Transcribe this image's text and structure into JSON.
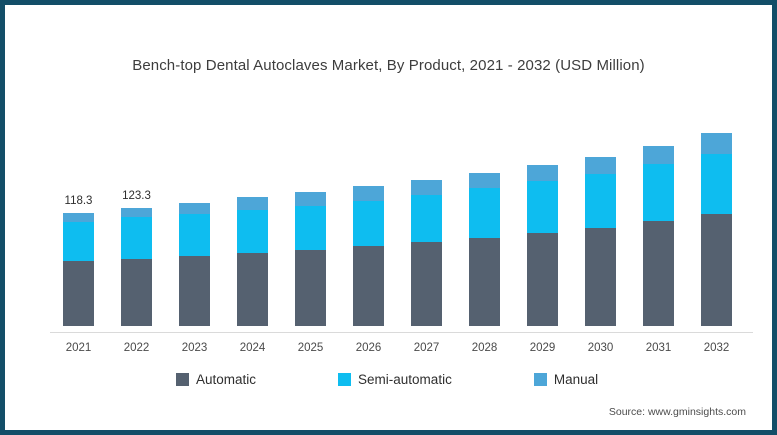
{
  "frame": {
    "border_color": "#134e68",
    "background": "#ffffff"
  },
  "chart_data": {
    "type": "bar",
    "stacked": true,
    "title": "Bench-top Dental Autoclaves Market, By Product, 2021 - 2032 (USD Million)",
    "xlabel": "",
    "ylabel": "",
    "unit": "USD Million",
    "categories": [
      "2021",
      "2022",
      "2023",
      "2024",
      "2025",
      "2026",
      "2027",
      "2028",
      "2029",
      "2030",
      "2031",
      "2032"
    ],
    "series": [
      {
        "name": "Automatic",
        "color": "#556170",
        "values": [
          67.4,
          70.2,
          73.2,
          76.2,
          78.8,
          83.0,
          87.2,
          92.0,
          97.0,
          102.2,
          109.0,
          116.5
        ]
      },
      {
        "name": "Semi-automatic",
        "color": "#0ebdf0",
        "values": [
          41.3,
          43.3,
          43.6,
          44.9,
          45.8,
          47.6,
          49.4,
          51.8,
          54.0,
          56.5,
          60.0,
          63.0
        ]
      },
      {
        "name": "Manual",
        "color": "#4da6d8",
        "values": [
          9.6,
          9.8,
          11.8,
          12.8,
          15.0,
          15.0,
          15.4,
          15.6,
          16.4,
          17.8,
          19.0,
          21.4
        ]
      }
    ],
    "totals": [
      118.3,
      123.3,
      128.6,
      133.9,
      139.6,
      145.6,
      152.0,
      159.4,
      167.4,
      176.5,
      188.0,
      200.9
    ],
    "bar_labels": [
      "118.3",
      "123.3",
      "",
      "",
      "",
      "",
      "",
      "",
      "",
      "",
      "",
      ""
    ],
    "ylim": [
      0,
      210
    ],
    "grid": false,
    "legend_position": "bottom",
    "axis_line_color": "#dadada"
  },
  "source": {
    "text": "Source: www.gminsights.com"
  }
}
